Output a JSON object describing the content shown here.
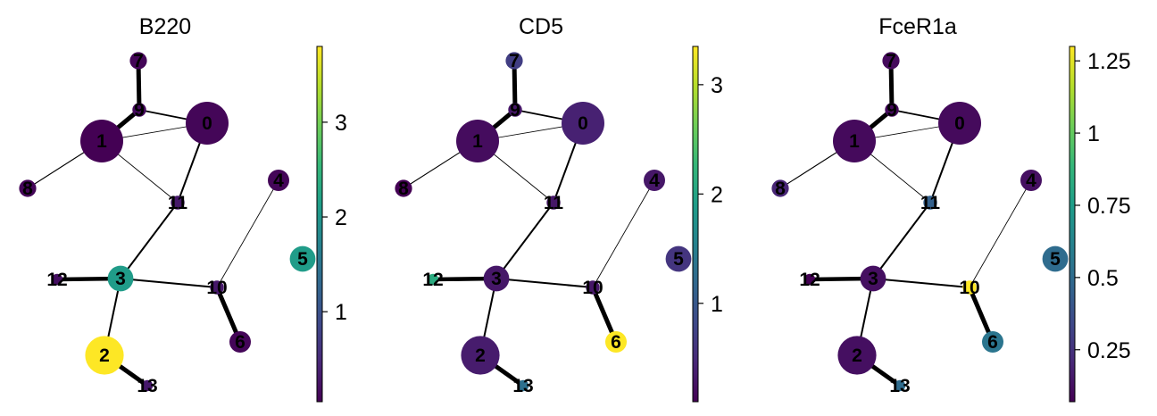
{
  "chart_data": [
    {
      "type": "graph",
      "title": "B220",
      "colorbar": {
        "min": 0.05,
        "max": 3.8,
        "ticks": [
          1,
          2,
          3
        ],
        "tick_labels": [
          "1",
          "2",
          "3"
        ]
      },
      "node_values": {
        "0": 0.1,
        "1": 0.05,
        "2": 3.8,
        "3": 2.1,
        "4": 0.1,
        "5": 2.1,
        "6": 0.1,
        "7": 0.1,
        "8": 0.1,
        "9": 0.15,
        "10": 0.3,
        "11": 0.3,
        "12": 0.2,
        "13": 0.3
      }
    },
    {
      "type": "graph",
      "title": "CD5",
      "colorbar": {
        "min": 0.1,
        "max": 3.35,
        "ticks": [
          1,
          2,
          3
        ],
        "tick_labels": [
          "1",
          "2",
          "3"
        ]
      },
      "node_values": {
        "0": 0.4,
        "1": 0.2,
        "2": 0.35,
        "3": 0.3,
        "4": 0.3,
        "5": 0.6,
        "6": 3.35,
        "7": 0.7,
        "8": 0.1,
        "9": 0.3,
        "10": 0.3,
        "11": 0.3,
        "12": 2.1,
        "13": 1.3
      }
    },
    {
      "type": "graph",
      "title": "FceR1a",
      "colorbar": {
        "min": 0.07,
        "max": 1.3,
        "ticks": [
          0.25,
          0.5,
          0.75,
          1,
          1.25
        ],
        "tick_labels": [
          "0.25",
          "0.5",
          "0.75",
          "1",
          "1.25"
        ]
      },
      "node_values": {
        "0": 0.1,
        "1": 0.1,
        "2": 0.12,
        "3": 0.12,
        "4": 0.12,
        "5": 0.5,
        "6": 0.55,
        "7": 0.1,
        "8": 0.2,
        "9": 0.1,
        "10": 1.3,
        "11": 0.45,
        "12": 0.07,
        "13": 0.5
      }
    }
  ],
  "nodes": [
    {
      "id": "0",
      "label": "0",
      "size": 5.0
    },
    {
      "id": "1",
      "label": "1",
      "size": 5.0
    },
    {
      "id": "2",
      "label": "2",
      "size": 4.5
    },
    {
      "id": "3",
      "label": "3",
      "size": 3.0
    },
    {
      "id": "4",
      "label": "4",
      "size": 2.5
    },
    {
      "id": "5",
      "label": "5",
      "size": 3.0
    },
    {
      "id": "6",
      "label": "6",
      "size": 2.5
    },
    {
      "id": "7",
      "label": "7",
      "size": 2.0
    },
    {
      "id": "8",
      "label": "8",
      "size": 2.0
    },
    {
      "id": "9",
      "label": "9",
      "size": 1.6
    },
    {
      "id": "10",
      "label": "10",
      "size": 1.6
    },
    {
      "id": "11",
      "label": "11",
      "size": 1.6
    },
    {
      "id": "12",
      "label": "12",
      "size": 1.3
    },
    {
      "id": "13",
      "label": "13",
      "size": 1.3
    }
  ],
  "edges": [
    {
      "source": "7",
      "target": "9",
      "weight": 1.0
    },
    {
      "source": "9",
      "target": "1",
      "weight": 1.0
    },
    {
      "source": "9",
      "target": "0",
      "weight": 0.3
    },
    {
      "source": "1",
      "target": "0",
      "weight": 0.1
    },
    {
      "source": "1",
      "target": "8",
      "weight": 0.15
    },
    {
      "source": "1",
      "target": "11",
      "weight": 0.1
    },
    {
      "source": "0",
      "target": "11",
      "weight": 0.35
    },
    {
      "source": "11",
      "target": "3",
      "weight": 0.35
    },
    {
      "source": "12",
      "target": "3",
      "weight": 0.9
    },
    {
      "source": "3",
      "target": "2",
      "weight": 0.35
    },
    {
      "source": "2",
      "target": "13",
      "weight": 1.0
    },
    {
      "source": "3",
      "target": "10",
      "weight": 0.35
    },
    {
      "source": "10",
      "target": "6",
      "weight": 1.0
    },
    {
      "source": "10",
      "target": "4",
      "weight": 0.1
    }
  ],
  "colormap": [
    "#440154",
    "#482878",
    "#3e4989",
    "#31688e",
    "#26828e",
    "#1f9e89",
    "#35b779",
    "#6ece58",
    "#b5de2b",
    "#fde725"
  ]
}
